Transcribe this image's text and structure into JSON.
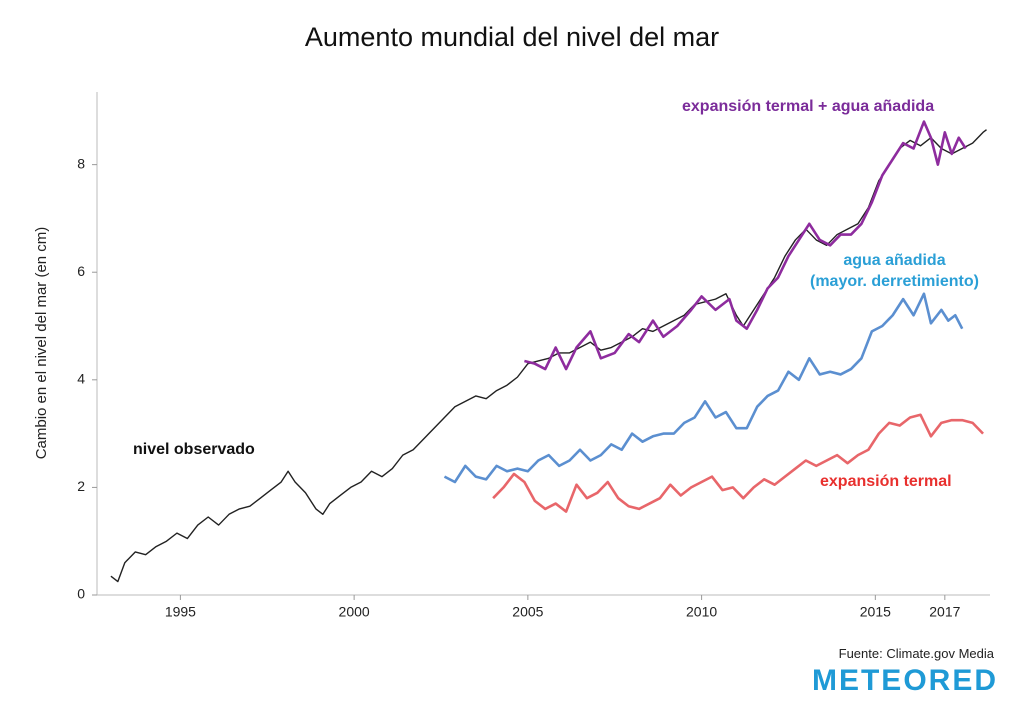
{
  "chart_data": {
    "type": "line",
    "title": "Aumento mundial del nivel del mar",
    "ylabel": "Cambio en el nivel del mar (en cm)",
    "source": "Fuente: Climate.gov Media",
    "logo": "METEORED",
    "xlim": [
      1992.6,
      2018.3
    ],
    "xticks": [
      1995,
      2000,
      2005,
      2010,
      2015,
      2017
    ],
    "ylim": [
      0,
      9.35
    ],
    "yticks": [
      0,
      2,
      4,
      6,
      8
    ],
    "series": [
      {
        "name": "expansión termal",
        "color": "#e8666a",
        "label_color": "#e8302e",
        "x": [
          2004.0,
          2004.3,
          2004.6,
          2004.9,
          2005.2,
          2005.5,
          2005.8,
          2006.1,
          2006.4,
          2006.7,
          2007.0,
          2007.3,
          2007.6,
          2007.9,
          2008.2,
          2008.5,
          2008.8,
          2009.1,
          2009.4,
          2009.7,
          2010.0,
          2010.3,
          2010.6,
          2010.9,
          2011.2,
          2011.5,
          2011.8,
          2012.1,
          2012.4,
          2012.7,
          2013.0,
          2013.3,
          2013.6,
          2013.9,
          2014.2,
          2014.5,
          2014.8,
          2015.1,
          2015.4,
          2015.7,
          2016.0,
          2016.3,
          2016.6,
          2016.9,
          2017.2,
          2017.5,
          2017.8,
          2018.1
        ],
        "values": [
          1.8,
          2.0,
          2.25,
          2.1,
          1.75,
          1.6,
          1.7,
          1.55,
          2.05,
          1.8,
          1.9,
          2.1,
          1.8,
          1.65,
          1.6,
          1.7,
          1.8,
          2.05,
          1.85,
          2.0,
          2.1,
          2.2,
          1.95,
          2.0,
          1.8,
          2.0,
          2.15,
          2.05,
          2.2,
          2.35,
          2.5,
          2.4,
          2.5,
          2.6,
          2.45,
          2.6,
          2.7,
          3.0,
          3.2,
          3.15,
          3.3,
          3.35,
          2.95,
          3.2,
          3.25,
          3.25,
          3.2,
          3.0
        ]
      },
      {
        "name": "agua añadida\n(mayor. derretimiento)",
        "color": "#5b8fd0",
        "label_color": "#2a9fd6",
        "x": [
          2002.6,
          2002.9,
          2003.2,
          2003.5,
          2003.8,
          2004.1,
          2004.4,
          2004.7,
          2005.0,
          2005.3,
          2005.6,
          2005.9,
          2006.2,
          2006.5,
          2006.8,
          2007.1,
          2007.4,
          2007.7,
          2008.0,
          2008.3,
          2008.6,
          2008.9,
          2009.2,
          2009.5,
          2009.8,
          2010.1,
          2010.4,
          2010.7,
          2011.0,
          2011.3,
          2011.6,
          2011.9,
          2012.2,
          2012.5,
          2012.8,
          2013.1,
          2013.4,
          2013.7,
          2014.0,
          2014.3,
          2014.6,
          2014.9,
          2015.2,
          2015.5,
          2015.8,
          2016.1,
          2016.4,
          2016.6,
          2016.9,
          2017.1,
          2017.3,
          2017.5
        ],
        "values": [
          2.2,
          2.1,
          2.4,
          2.2,
          2.15,
          2.4,
          2.3,
          2.35,
          2.3,
          2.5,
          2.6,
          2.4,
          2.5,
          2.7,
          2.5,
          2.6,
          2.8,
          2.7,
          3.0,
          2.85,
          2.95,
          3.0,
          3.0,
          3.2,
          3.3,
          3.6,
          3.3,
          3.4,
          3.1,
          3.1,
          3.5,
          3.7,
          3.8,
          4.15,
          4.0,
          4.4,
          4.1,
          4.15,
          4.1,
          4.2,
          4.4,
          4.9,
          5.0,
          5.2,
          5.5,
          5.2,
          5.6,
          5.05,
          5.3,
          5.1,
          5.2,
          4.95
        ]
      },
      {
        "name": "nivel observado",
        "color": "#222222",
        "label_color": "#111111",
        "x": [
          1993.0,
          1993.2,
          1993.4,
          1993.7,
          1994.0,
          1994.3,
          1994.6,
          1994.9,
          1995.2,
          1995.5,
          1995.8,
          1996.1,
          1996.4,
          1996.7,
          1997.0,
          1997.3,
          1997.6,
          1997.9,
          1998.1,
          1998.3,
          1998.6,
          1998.9,
          1999.1,
          1999.3,
          1999.6,
          1999.9,
          2000.2,
          2000.5,
          2000.8,
          2001.1,
          2001.4,
          2001.7,
          2002.0,
          2002.3,
          2002.6,
          2002.9,
          2003.2,
          2003.5,
          2003.8,
          2004.1,
          2004.4,
          2004.7,
          2005.0,
          2005.3,
          2005.6,
          2005.9,
          2006.2,
          2006.5,
          2006.8,
          2007.1,
          2007.4,
          2007.7,
          2008.0,
          2008.3,
          2008.6,
          2008.9,
          2009.2,
          2009.5,
          2009.8,
          2010.1,
          2010.4,
          2010.7,
          2011.0,
          2011.2,
          2011.5,
          2011.8,
          2012.1,
          2012.4,
          2012.7,
          2013.0,
          2013.3,
          2013.6,
          2013.9,
          2014.2,
          2014.5,
          2014.8,
          2015.1,
          2015.4,
          2015.7,
          2016.0,
          2016.3,
          2016.6,
          2016.9,
          2017.2,
          2017.5,
          2017.8,
          2018.1,
          2018.2
        ],
        "values": [
          0.35,
          0.25,
          0.6,
          0.8,
          0.75,
          0.9,
          1.0,
          1.15,
          1.05,
          1.3,
          1.45,
          1.3,
          1.5,
          1.6,
          1.65,
          1.8,
          1.95,
          2.1,
          2.3,
          2.1,
          1.9,
          1.6,
          1.5,
          1.7,
          1.85,
          2.0,
          2.1,
          2.3,
          2.2,
          2.35,
          2.6,
          2.7,
          2.9,
          3.1,
          3.3,
          3.5,
          3.6,
          3.7,
          3.65,
          3.8,
          3.9,
          4.05,
          4.3,
          4.35,
          4.4,
          4.5,
          4.5,
          4.6,
          4.7,
          4.55,
          4.6,
          4.7,
          4.8,
          4.95,
          4.9,
          5.0,
          5.1,
          5.2,
          5.4,
          5.45,
          5.5,
          5.6,
          5.2,
          5.0,
          5.3,
          5.6,
          5.9,
          6.3,
          6.6,
          6.8,
          6.6,
          6.5,
          6.7,
          6.8,
          6.9,
          7.2,
          7.7,
          8.0,
          8.3,
          8.45,
          8.35,
          8.5,
          8.3,
          8.2,
          8.3,
          8.4,
          8.6,
          8.65
        ]
      },
      {
        "name": "expansión termal + agua añadida",
        "color": "#8e2c9e",
        "label_color": "#7b2c9a",
        "x": [
          2004.9,
          2005.2,
          2005.5,
          2005.8,
          2006.1,
          2006.4,
          2006.8,
          2007.1,
          2007.5,
          2007.9,
          2008.2,
          2008.6,
          2008.9,
          2009.3,
          2009.7,
          2010.0,
          2010.4,
          2010.8,
          2011.0,
          2011.3,
          2011.6,
          2011.9,
          2012.2,
          2012.5,
          2012.8,
          2013.1,
          2013.4,
          2013.7,
          2014.0,
          2014.3,
          2014.6,
          2014.9,
          2015.2,
          2015.5,
          2015.8,
          2016.1,
          2016.4,
          2016.6,
          2016.8,
          2017.0,
          2017.2,
          2017.4,
          2017.6
        ],
        "values": [
          4.35,
          4.3,
          4.2,
          4.6,
          4.2,
          4.6,
          4.9,
          4.4,
          4.5,
          4.85,
          4.7,
          5.1,
          4.8,
          5.0,
          5.3,
          5.55,
          5.3,
          5.5,
          5.1,
          4.95,
          5.3,
          5.7,
          5.9,
          6.3,
          6.6,
          6.9,
          6.6,
          6.5,
          6.7,
          6.7,
          6.9,
          7.3,
          7.8,
          8.1,
          8.4,
          8.3,
          8.8,
          8.5,
          8.0,
          8.6,
          8.2,
          8.5,
          8.3
        ]
      }
    ]
  }
}
